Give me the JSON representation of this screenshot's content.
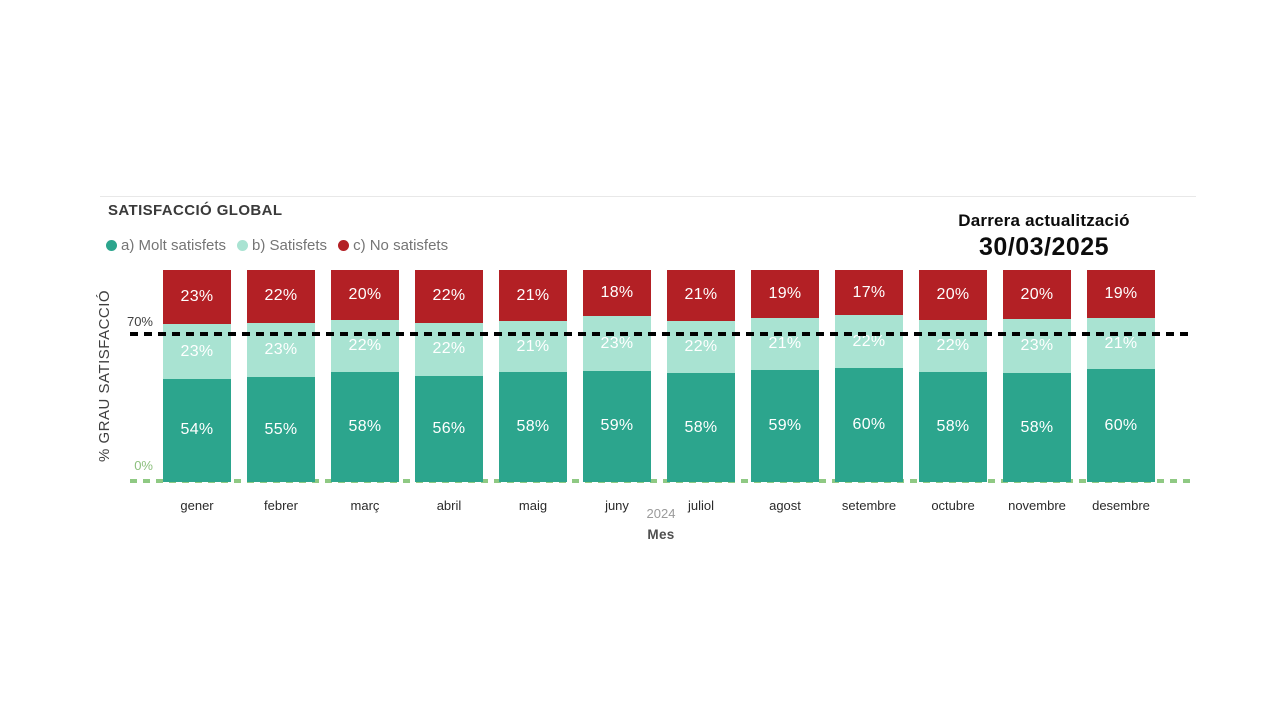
{
  "header": {
    "title": "SATISFACCIÓ GLOBAL",
    "last_update_label": "Darrera actualització",
    "last_update_date": "30/03/2025"
  },
  "legend": [
    {
      "label": "a) Molt satisfets",
      "color": "#2CA58D"
    },
    {
      "label": "b) Satisfets",
      "color": "#A9E3D2"
    },
    {
      "label": "c) No satisfets",
      "color": "#B32025"
    }
  ],
  "axes": {
    "y_title": "% GRAU SATISFACCIÓ",
    "y_tick_top": "70%",
    "y_tick_bottom": "0%",
    "x_group_label": "2024",
    "x_title": "Mes"
  },
  "chart_data": {
    "type": "bar",
    "stacked": true,
    "title": "SATISFACCIÓ GLOBAL",
    "xlabel": "Mes",
    "x_group_label": "2024",
    "ylabel": "% GRAU SATISFACCIÓ",
    "ylim": [
      0,
      100
    ],
    "value_suffix": "%",
    "grid": false,
    "legend_position": "top-left",
    "reference_line": {
      "value": 70,
      "label": "70%",
      "style": "dashed",
      "color": "#000000"
    },
    "baseline": {
      "value": 0,
      "label": "0%",
      "style": "dashed",
      "color": "#8FC983"
    },
    "categories": [
      "gener",
      "febrer",
      "març",
      "abril",
      "maig",
      "juny",
      "juliol",
      "agost",
      "setembre",
      "octubre",
      "novembre",
      "desembre"
    ],
    "series": [
      {
        "name": "a) Molt satisfets",
        "color": "#2CA58D",
        "values": [
          54,
          55,
          58,
          56,
          58,
          59,
          58,
          59,
          60,
          58,
          58,
          60
        ]
      },
      {
        "name": "b) Satisfets",
        "color": "#A9E3D2",
        "values": [
          23,
          23,
          22,
          22,
          21,
          23,
          22,
          21,
          22,
          22,
          23,
          21
        ]
      },
      {
        "name": "c) No satisfets",
        "color": "#B32025",
        "values": [
          23,
          22,
          20,
          22,
          21,
          18,
          21,
          19,
          17,
          20,
          20,
          19
        ]
      }
    ]
  }
}
